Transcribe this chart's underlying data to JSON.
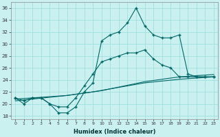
{
  "xlabel": "Humidex (Indice chaleur)",
  "ylabel": "",
  "background_color": "#caf0f0",
  "grid_color": "#99dddd",
  "line_color": "#006666",
  "xlim": [
    -0.5,
    23.5
  ],
  "ylim": [
    17.5,
    37
  ],
  "xtick_labels": [
    "0",
    "1",
    "2",
    "3",
    "4",
    "5",
    "6",
    "7",
    "8",
    "9",
    "10",
    "11",
    "12",
    "13",
    "14",
    "15",
    "16",
    "17",
    "18",
    "19",
    "20",
    "21",
    "22",
    "23"
  ],
  "yticks": [
    18,
    20,
    22,
    24,
    26,
    28,
    30,
    32,
    34,
    36
  ],
  "series": [
    [
      21,
      20,
      21,
      21,
      20,
      18.5,
      18.5,
      19.5,
      22,
      23.5,
      30.5,
      31.5,
      32,
      33.5,
      36,
      33,
      31.5,
      31,
      31,
      31.5,
      25,
      24.5,
      24.5,
      24.5
    ],
    [
      21,
      20.5,
      21,
      21,
      20,
      19.5,
      19.5,
      21,
      23,
      25,
      27,
      27.5,
      28,
      28.5,
      28.5,
      29,
      27.5,
      26.5,
      26,
      24.5,
      24.5,
      24.5,
      24.5,
      24.5
    ],
    [
      20.8,
      20.9,
      21.0,
      21.1,
      21.2,
      21.3,
      21.4,
      21.6,
      21.8,
      22.0,
      22.2,
      22.5,
      22.8,
      23.1,
      23.4,
      23.7,
      23.9,
      24.1,
      24.3,
      24.5,
      24.6,
      24.7,
      24.8,
      24.9
    ],
    [
      20.5,
      20.65,
      20.8,
      20.95,
      21.1,
      21.25,
      21.4,
      21.6,
      21.8,
      22.0,
      22.25,
      22.5,
      22.75,
      23.0,
      23.25,
      23.5,
      23.65,
      23.8,
      23.95,
      24.1,
      24.2,
      24.3,
      24.4,
      24.5
    ]
  ]
}
